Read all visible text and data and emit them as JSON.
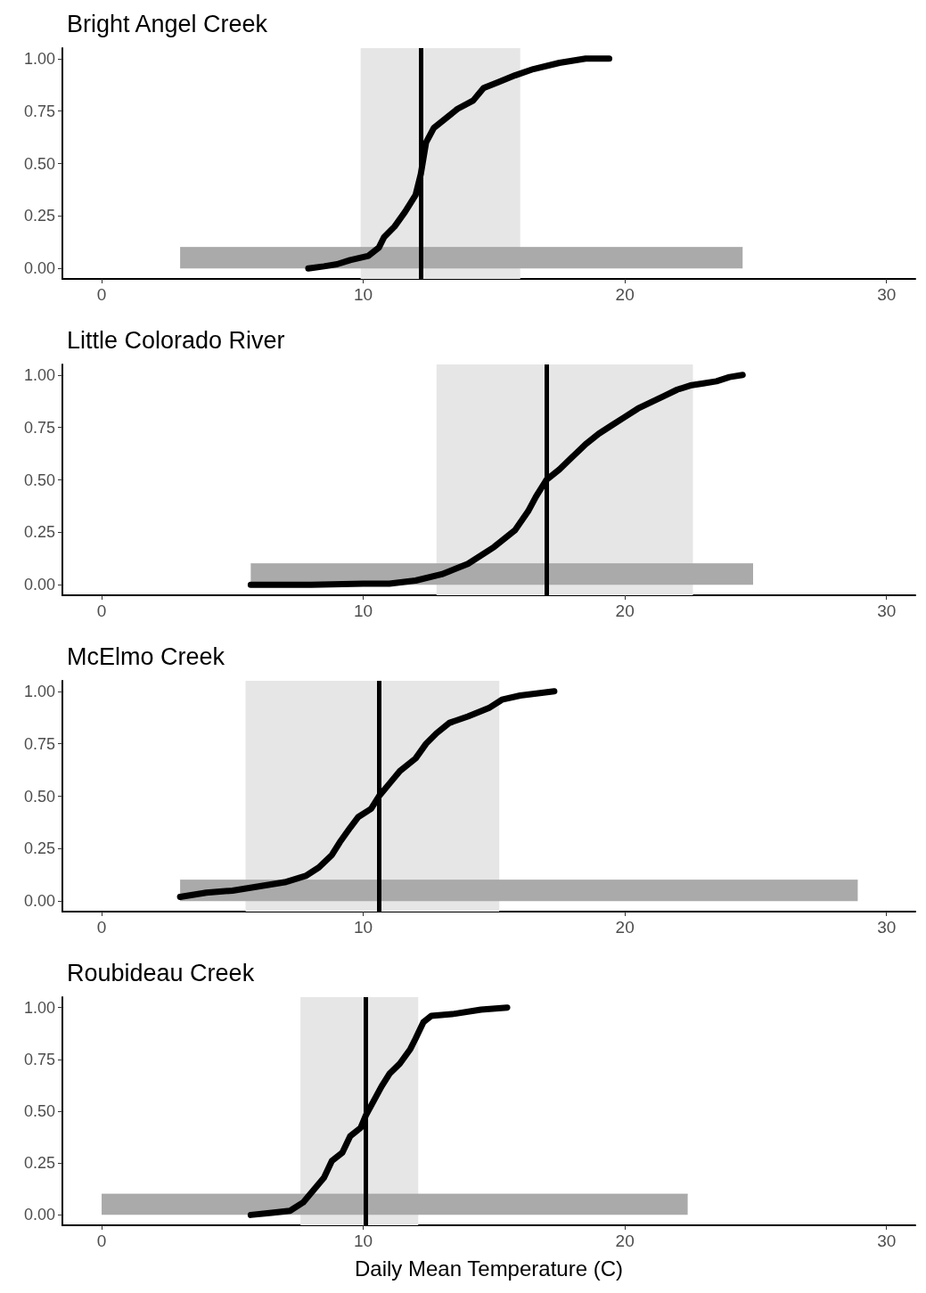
{
  "chart_data": [
    {
      "type": "line",
      "title": "Bright Angel Creek",
      "xlim": [
        -1.5,
        31.1
      ],
      "ylim": [
        -0.05,
        1.05
      ],
      "xticks": [
        0,
        10,
        20,
        30
      ],
      "yticks": [
        {
          "value": 0,
          "label": "0.00"
        },
        {
          "value": 0.25,
          "label": "0.25"
        },
        {
          "value": 0.5,
          "label": "0.50"
        },
        {
          "value": 0.75,
          "label": "0.75"
        },
        {
          "value": 1,
          "label": "1.00"
        }
      ],
      "grid": false,
      "marker": "none",
      "line_style": "solid",
      "bands": [
        {
          "axis": "x",
          "from": 9.9,
          "to": 16.0,
          "color": "#e6e6e6"
        }
      ],
      "ref_lines": [
        {
          "axis": "x",
          "value": 12.2,
          "color": "#000000"
        }
      ],
      "series": [
        {
          "type": "area",
          "color": "#aaaaaa",
          "x": [
            3.0,
            24.5
          ],
          "values": [
            0.1,
            0.1
          ]
        },
        {
          "type": "line",
          "color": "#000000",
          "x": [
            7.9,
            8.5,
            9,
            9.5,
            10.2,
            10.6,
            10.8,
            11.2,
            11.6,
            12.0,
            12.2,
            12.4,
            12.7,
            13.2,
            13.6,
            14.2,
            14.6,
            15.2,
            15.8,
            16.5,
            17.5,
            18.5,
            19.4
          ],
          "values": [
            0,
            0.01,
            0.02,
            0.04,
            0.06,
            0.1,
            0.15,
            0.2,
            0.27,
            0.35,
            0.45,
            0.6,
            0.67,
            0.72,
            0.76,
            0.8,
            0.86,
            0.89,
            0.92,
            0.95,
            0.98,
            1.0,
            1.0
          ]
        }
      ]
    },
    {
      "type": "line",
      "title": "Little Colorado River",
      "xlim": [
        -1.5,
        31.1
      ],
      "ylim": [
        -0.05,
        1.05
      ],
      "xticks": [
        0,
        10,
        20,
        30
      ],
      "yticks": [
        {
          "value": 0,
          "label": "0.00"
        },
        {
          "value": 0.25,
          "label": "0.25"
        },
        {
          "value": 0.5,
          "label": "0.50"
        },
        {
          "value": 0.75,
          "label": "0.75"
        },
        {
          "value": 1,
          "label": "1.00"
        }
      ],
      "grid": false,
      "marker": "none",
      "line_style": "solid",
      "bands": [
        {
          "axis": "x",
          "from": 12.8,
          "to": 22.6,
          "color": "#e6e6e6"
        }
      ],
      "ref_lines": [
        {
          "axis": "x",
          "value": 17.0,
          "color": "#000000"
        }
      ],
      "series": [
        {
          "type": "area",
          "color": "#aaaaaa",
          "x": [
            5.7,
            24.9
          ],
          "values": [
            0.1,
            0.1
          ]
        },
        {
          "type": "line",
          "color": "#000000",
          "x": [
            5.7,
            8,
            10,
            11,
            12,
            13,
            14,
            15,
            15.8,
            16.3,
            16.6,
            17,
            17.5,
            18,
            18.5,
            19,
            19.5,
            20,
            20.5,
            21,
            21.5,
            22,
            22.5,
            23,
            23.5,
            24,
            24.5
          ],
          "values": [
            0,
            0,
            0.005,
            0.005,
            0.02,
            0.05,
            0.1,
            0.18,
            0.26,
            0.35,
            0.42,
            0.5,
            0.55,
            0.61,
            0.67,
            0.72,
            0.76,
            0.8,
            0.84,
            0.87,
            0.9,
            0.93,
            0.95,
            0.96,
            0.97,
            0.99,
            1.0
          ]
        }
      ]
    },
    {
      "type": "line",
      "title": "McElmo Creek",
      "xlim": [
        -1.5,
        31.1
      ],
      "ylim": [
        -0.05,
        1.05
      ],
      "xticks": [
        0,
        10,
        20,
        30
      ],
      "yticks": [
        {
          "value": 0,
          "label": "0.00"
        },
        {
          "value": 0.25,
          "label": "0.25"
        },
        {
          "value": 0.5,
          "label": "0.50"
        },
        {
          "value": 0.75,
          "label": "0.75"
        },
        {
          "value": 1,
          "label": "1.00"
        }
      ],
      "grid": false,
      "marker": "none",
      "line_style": "solid",
      "bands": [
        {
          "axis": "x",
          "from": 5.5,
          "to": 15.2,
          "color": "#e6e6e6"
        }
      ],
      "ref_lines": [
        {
          "axis": "x",
          "value": 10.6,
          "color": "#000000"
        }
      ],
      "series": [
        {
          "type": "area",
          "color": "#aaaaaa",
          "x": [
            3.0,
            28.9
          ],
          "values": [
            0.1,
            0.1
          ]
        },
        {
          "type": "line",
          "color": "#000000",
          "x": [
            3,
            4,
            5,
            6,
            7,
            7.8,
            8.3,
            8.8,
            9.1,
            9.5,
            9.8,
            10.3,
            10.6,
            11,
            11.4,
            12,
            12.4,
            12.8,
            13.3,
            14,
            14.8,
            15.3,
            16,
            17.3
          ],
          "values": [
            0.02,
            0.04,
            0.05,
            0.07,
            0.09,
            0.12,
            0.16,
            0.22,
            0.28,
            0.35,
            0.4,
            0.44,
            0.5,
            0.56,
            0.62,
            0.68,
            0.75,
            0.8,
            0.85,
            0.88,
            0.92,
            0.96,
            0.98,
            1.0
          ]
        }
      ]
    },
    {
      "type": "line",
      "title": "Roubideau Creek",
      "xlabel": "Daily Mean Temperature (C)",
      "xlim": [
        -1.5,
        31.1
      ],
      "ylim": [
        -0.05,
        1.05
      ],
      "xticks": [
        0,
        10,
        20,
        30
      ],
      "yticks": [
        {
          "value": 0,
          "label": "0.00"
        },
        {
          "value": 0.25,
          "label": "0.25"
        },
        {
          "value": 0.5,
          "label": "0.50"
        },
        {
          "value": 0.75,
          "label": "0.75"
        },
        {
          "value": 1,
          "label": "1.00"
        }
      ],
      "grid": false,
      "marker": "none",
      "line_style": "solid",
      "bands": [
        {
          "axis": "x",
          "from": 7.6,
          "to": 12.1,
          "color": "#e6e6e6"
        }
      ],
      "ref_lines": [
        {
          "axis": "x",
          "value": 10.1,
          "color": "#000000"
        }
      ],
      "series": [
        {
          "type": "area",
          "color": "#aaaaaa",
          "x": [
            0,
            22.4
          ],
          "values": [
            0.1,
            0.1
          ]
        },
        {
          "type": "line",
          "color": "#000000",
          "x": [
            5.7,
            6.5,
            7.2,
            7.7,
            8.1,
            8.5,
            8.8,
            9.2,
            9.5,
            9.9,
            10.1,
            10.4,
            10.7,
            11.0,
            11.4,
            11.8,
            12.0,
            12.3,
            12.6,
            13.5,
            14.5,
            15.5
          ],
          "values": [
            0,
            0.01,
            0.02,
            0.06,
            0.12,
            0.18,
            0.26,
            0.3,
            0.38,
            0.42,
            0.48,
            0.55,
            0.62,
            0.68,
            0.73,
            0.8,
            0.85,
            0.93,
            0.96,
            0.97,
            0.99,
            1.0
          ]
        }
      ]
    }
  ]
}
